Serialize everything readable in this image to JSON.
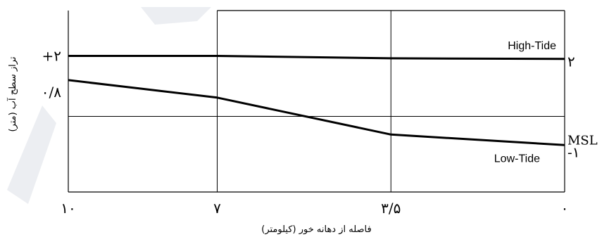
{
  "chart_data": {
    "type": "line",
    "x_domain": [
      10,
      0
    ],
    "y_range_plot": [
      -2.5,
      3.5
    ],
    "xlabel": "فاصله از دهانه خور (کیلومتر)",
    "ylabel": "تراز سطح آب (متر)",
    "x_ticks": [
      {
        "value": 10,
        "label": "۱۰"
      },
      {
        "value": 7,
        "label": "۷"
      },
      {
        "value": 3.5,
        "label": "۳/۵"
      },
      {
        "value": 0,
        "label": "۰"
      }
    ],
    "left_ticks": [
      {
        "value": 2,
        "label": "+۲"
      },
      {
        "value": 0.8,
        "label": "۰/۸"
      }
    ],
    "right_ticks": [
      {
        "value": 2,
        "label": "۲"
      },
      {
        "value": 0,
        "label": "MSL"
      },
      {
        "value": -1,
        "label": "-۱"
      }
    ],
    "msl_value": 0,
    "series": [
      {
        "name": "High-Tide",
        "points": [
          [
            10,
            2.0
          ],
          [
            7,
            2.0
          ],
          [
            3.5,
            1.92
          ],
          [
            0,
            1.9
          ]
        ]
      },
      {
        "name": "Low-Tide",
        "points": [
          [
            10,
            1.2
          ],
          [
            7,
            0.62
          ],
          [
            3.5,
            -0.6
          ],
          [
            0,
            -0.95
          ]
        ]
      }
    ],
    "grid": {
      "vertical_at": [
        7,
        3.5
      ],
      "horizontal_at": [
        0
      ]
    }
  }
}
